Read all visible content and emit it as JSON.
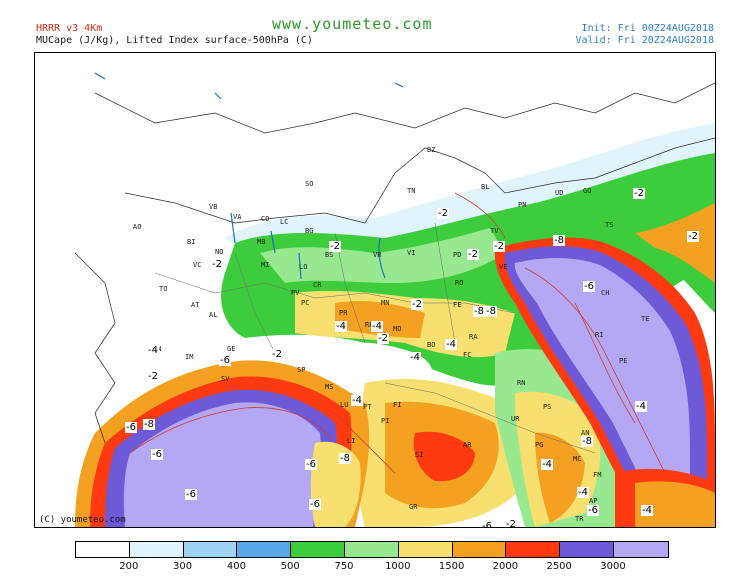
{
  "header": {
    "model": "HRRR v3 4Km",
    "params": "MUCape (J/Kg), Lifted Index surface-500hPa (C)",
    "site": "www.youmeteo.com",
    "init": "Init: Fri 00Z24AUG2018",
    "valid": "Valid: Fri 20Z24AUG2018"
  },
  "map": {
    "copyright": "(C) youmeteo.com",
    "cities": [
      "BZ",
      "SO",
      "TN",
      "BL",
      "UD",
      "GO",
      "TS",
      "PN",
      "TV",
      "VE",
      "PD",
      "VI",
      "VR",
      "BS",
      "BG",
      "LC",
      "CO",
      "VA",
      "VB",
      "NO",
      "BI",
      "AO",
      "TO",
      "VC",
      "MI",
      "MB",
      "LO",
      "PV",
      "CR",
      "PC",
      "MN",
      "RO",
      "FE",
      "RA",
      "FC",
      "RN",
      "BO",
      "MO",
      "RE",
      "PR",
      "SP",
      "MS",
      "LU",
      "PT",
      "FI",
      "AR",
      "SI",
      "GR",
      "PI",
      "LI",
      "PS",
      "UR",
      "AN",
      "MC",
      "FM",
      "AP",
      "TR",
      "PG",
      "CN",
      "AT",
      "AL",
      "GE",
      "SV",
      "IM",
      "RI",
      "CH",
      "TE",
      "PE"
    ],
    "li_labels": [
      "-2",
      "-2",
      "-2",
      "-2",
      "-8",
      "-2",
      "-2",
      "-2",
      "-8",
      "-6",
      "-8",
      "-2",
      "-4",
      "-4",
      "-4",
      "-2",
      "-2",
      "-4",
      "-6",
      "-2",
      "-4",
      "-4",
      "-4",
      "-6",
      "-6",
      "-8",
      "-6",
      "-6",
      "-8",
      "-8",
      "-6",
      "-4",
      "-4",
      "-4",
      "-6",
      "-2",
      "-6"
    ]
  },
  "legend": {
    "colors": [
      "#ffffff",
      "#dff5fb",
      "#9fd3f3",
      "#5aa8ee",
      "#3ccc3c",
      "#98e890",
      "#f8e070",
      "#f4a020",
      "#ff3a10",
      "#6e5ad6",
      "#b4a8f4"
    ],
    "ticks": [
      "200",
      "300",
      "400",
      "500",
      "750",
      "1000",
      "1500",
      "2000",
      "2500",
      "3000"
    ]
  }
}
